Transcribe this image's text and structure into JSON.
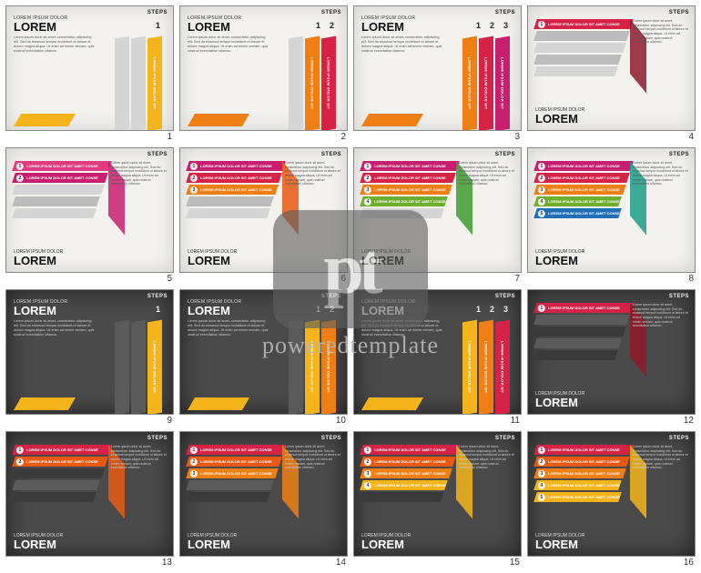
{
  "watermark": {
    "logo_text": "pt",
    "line": "poweredtemplate"
  },
  "common": {
    "steps_label": "STEPS",
    "subtitle": "LOREM IPSUM DOLOR",
    "title": "LOREM",
    "body": "Lorem ipsum dolor sit amet, consectetur adipiscing elit. Sed do eiusmod tempor incididunt ut labore et dolore magna aliqua. Ut enim ad minim veniam, quis nostrud exercitation ullamco.",
    "bar_text": "LOREM IPSUM DOLOR SIT",
    "bar_text_long": "LOREM IPSUM DOLOR SIT AMET CONSE",
    "ribbon_text": "LOREM IPSUM DOLOR SIT"
  },
  "palettes": {
    "grey_light": "#d5d5d5",
    "grey_mid": "#bcbcbc",
    "grey_dark_slide": "#5a5a5a",
    "grey_darker_slide": "#3a3a3a",
    "yellow": "#f4b41a",
    "orange": "#f07f13",
    "orange2": "#e85a12",
    "red": "#d62246",
    "magenta": "#c81e6f",
    "pink": "#e23a80",
    "green": "#6fae2e",
    "green2": "#3e9b2f",
    "teal": "#1b9e8a",
    "blue": "#1e6fb8",
    "dark_red": "#8f1a2a"
  },
  "slides": [
    {
      "n": 1,
      "theme": "light",
      "type": "A",
      "step_nums": [
        "1"
      ],
      "ribbons": [
        "yellow"
      ],
      "ghost": [
        "grey_light"
      ],
      "tail": "yellow"
    },
    {
      "n": 2,
      "theme": "light",
      "type": "A",
      "step_nums": [
        "1",
        "2"
      ],
      "ribbons": [
        "orange",
        "red"
      ],
      "ghost": [
        "grey_light"
      ],
      "tail": "orange"
    },
    {
      "n": 3,
      "theme": "light",
      "type": "A",
      "step_nums": [
        "1",
        "2",
        "3"
      ],
      "ribbons": [
        "orange",
        "red",
        "magenta"
      ],
      "ghost": [],
      "tail": "orange"
    },
    {
      "n": 4,
      "theme": "light",
      "type": "B",
      "bars": [
        {
          "n": "1",
          "c": "red"
        },
        {
          "n": "",
          "c": "grey_mid"
        },
        {
          "n": "",
          "c": "grey_light"
        },
        {
          "n": "",
          "c": "grey_mid"
        },
        {
          "n": "",
          "c": "grey_light"
        }
      ],
      "fold": "dark_red"
    },
    {
      "n": 5,
      "theme": "light",
      "type": "B",
      "bars": [
        {
          "n": "1",
          "c": "pink"
        },
        {
          "n": "2",
          "c": "magenta"
        },
        {
          "n": "",
          "c": "grey_light"
        },
        {
          "n": "",
          "c": "grey_mid"
        },
        {
          "n": "",
          "c": "grey_light"
        }
      ],
      "fold": "magenta"
    },
    {
      "n": 6,
      "theme": "light",
      "type": "B",
      "bars": [
        {
          "n": "1",
          "c": "magenta"
        },
        {
          "n": "2",
          "c": "red"
        },
        {
          "n": "3",
          "c": "orange"
        },
        {
          "n": "",
          "c": "grey_mid"
        },
        {
          "n": "",
          "c": "grey_light"
        }
      ],
      "fold": "orange2"
    },
    {
      "n": 7,
      "theme": "light",
      "type": "B",
      "bars": [
        {
          "n": "1",
          "c": "magenta"
        },
        {
          "n": "2",
          "c": "red"
        },
        {
          "n": "3",
          "c": "orange"
        },
        {
          "n": "4",
          "c": "green"
        },
        {
          "n": "",
          "c": "grey_light"
        }
      ],
      "fold": "green2"
    },
    {
      "n": 8,
      "theme": "light",
      "type": "B",
      "bars": [
        {
          "n": "1",
          "c": "magenta"
        },
        {
          "n": "2",
          "c": "red"
        },
        {
          "n": "3",
          "c": "orange"
        },
        {
          "n": "4",
          "c": "green"
        },
        {
          "n": "5",
          "c": "blue"
        }
      ],
      "fold": "teal"
    },
    {
      "n": 9,
      "theme": "dark",
      "type": "A",
      "step_nums": [
        "1"
      ],
      "ribbons": [
        "yellow"
      ],
      "ghost": [
        "grey_dark_slide"
      ],
      "tail": "yellow"
    },
    {
      "n": 10,
      "theme": "dark",
      "type": "A",
      "step_nums": [
        "1",
        "2"
      ],
      "ribbons": [
        "yellow",
        "orange"
      ],
      "ghost": [
        "grey_dark_slide"
      ],
      "tail": "yellow"
    },
    {
      "n": 11,
      "theme": "dark",
      "type": "A",
      "step_nums": [
        "1",
        "2",
        "3"
      ],
      "ribbons": [
        "yellow",
        "orange",
        "red"
      ],
      "ghost": [],
      "tail": "yellow"
    },
    {
      "n": 12,
      "theme": "dark",
      "type": "B",
      "bars": [
        {
          "n": "1",
          "c": "red"
        },
        {
          "n": "",
          "c": "grey_dark_slide"
        },
        {
          "n": "",
          "c": "grey_darker_slide"
        },
        {
          "n": "",
          "c": "grey_dark_slide"
        },
        {
          "n": "",
          "c": "grey_darker_slide"
        }
      ],
      "fold": "dark_red"
    },
    {
      "n": 13,
      "theme": "dark",
      "type": "B",
      "bars": [
        {
          "n": "1",
          "c": "red"
        },
        {
          "n": "2",
          "c": "orange2"
        },
        {
          "n": "",
          "c": "grey_darker_slide"
        },
        {
          "n": "",
          "c": "grey_dark_slide"
        },
        {
          "n": "",
          "c": "grey_darker_slide"
        }
      ],
      "fold": "orange2"
    },
    {
      "n": 14,
      "theme": "dark",
      "type": "B",
      "bars": [
        {
          "n": "1",
          "c": "red"
        },
        {
          "n": "2",
          "c": "orange2"
        },
        {
          "n": "3",
          "c": "orange"
        },
        {
          "n": "",
          "c": "grey_dark_slide"
        },
        {
          "n": "",
          "c": "grey_darker_slide"
        }
      ],
      "fold": "orange"
    },
    {
      "n": 15,
      "theme": "dark",
      "type": "B",
      "bars": [
        {
          "n": "1",
          "c": "red"
        },
        {
          "n": "2",
          "c": "orange2"
        },
        {
          "n": "3",
          "c": "orange"
        },
        {
          "n": "4",
          "c": "yellow"
        },
        {
          "n": "",
          "c": "grey_darker_slide"
        }
      ],
      "fold": "yellow"
    },
    {
      "n": 16,
      "theme": "dark",
      "type": "B",
      "bars": [
        {
          "n": "1",
          "c": "red"
        },
        {
          "n": "2",
          "c": "orange2"
        },
        {
          "n": "3",
          "c": "orange"
        },
        {
          "n": "4",
          "c": "yellow"
        },
        {
          "n": "5",
          "c": "yellow"
        }
      ],
      "fold": "yellow"
    }
  ]
}
